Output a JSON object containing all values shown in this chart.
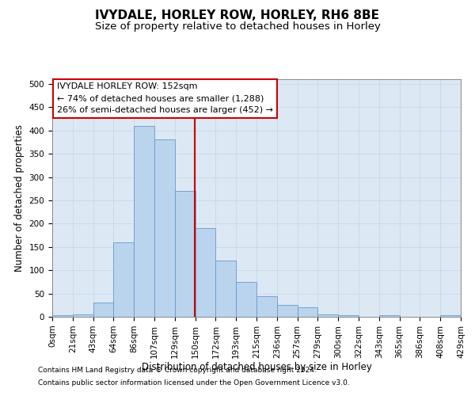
{
  "title": "IVYDALE, HORLEY ROW, HORLEY, RH6 8BE",
  "subtitle": "Size of property relative to detached houses in Horley",
  "xlabel": "Distribution of detached houses by size in Horley",
  "ylabel": "Number of detached properties",
  "footnote1": "Contains HM Land Registry data © Crown copyright and database right 2024.",
  "footnote2": "Contains public sector information licensed under the Open Government Licence v3.0.",
  "annotation_title": "IVYDALE HORLEY ROW: 152sqm",
  "annotation_line1": "← 74% of detached houses are smaller (1,288)",
  "annotation_line2": "26% of semi-detached houses are larger (452) →",
  "bin_starts": [
    0,
    21.5,
    43,
    64.5,
    86,
    107.5,
    129,
    150.5,
    172,
    193.5,
    215,
    236.5,
    258,
    279.5,
    301,
    322.5,
    344,
    365.5,
    387,
    408.5
  ],
  "bin_labels": [
    "0sqm",
    "21sqm",
    "43sqm",
    "64sqm",
    "86sqm",
    "107sqm",
    "129sqm",
    "150sqm",
    "172sqm",
    "193sqm",
    "215sqm",
    "236sqm",
    "257sqm",
    "279sqm",
    "300sqm",
    "322sqm",
    "343sqm",
    "365sqm",
    "386sqm",
    "408sqm",
    "429sqm"
  ],
  "bar_heights": [
    3,
    5,
    30,
    160,
    410,
    380,
    270,
    190,
    120,
    75,
    45,
    25,
    20,
    5,
    3,
    0,
    3,
    0,
    0,
    3
  ],
  "bar_color": "#bad4ed",
  "bar_edge_color": "#6699cc",
  "vline_color": "#cc0000",
  "vline_x": 150,
  "bar_width": 21.5,
  "ylim": [
    0,
    510
  ],
  "yticks": [
    0,
    50,
    100,
    150,
    200,
    250,
    300,
    350,
    400,
    450,
    500
  ],
  "grid_color": "#c8d8e8",
  "bg_color": "#dce8f4",
  "annotation_box_color": "#ffffff",
  "annotation_box_edge": "#cc0000",
  "title_fontsize": 11,
  "subtitle_fontsize": 9.5,
  "axis_label_fontsize": 8.5,
  "tick_fontsize": 7.5,
  "annotation_fontsize": 8
}
